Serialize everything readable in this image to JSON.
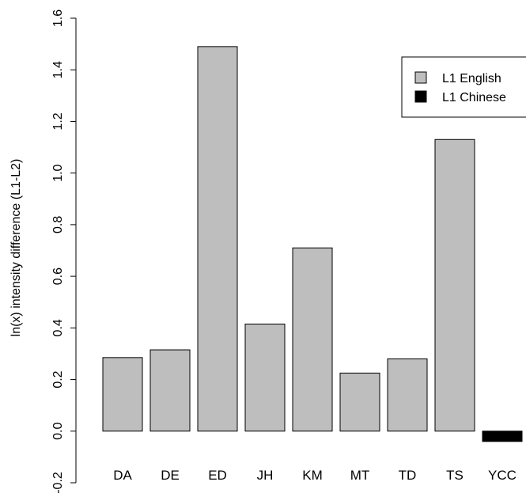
{
  "chart_data": {
    "type": "bar",
    "title": "",
    "xlabel": "",
    "ylabel": "ln(x) intensity difference (L1-L2)",
    "ylim": [
      -0.2,
      1.6
    ],
    "yticks": [
      "-0.2",
      "0.0",
      "0.2",
      "0.4",
      "0.6",
      "0.8",
      "1.0",
      "1.2",
      "1.4",
      "1.6"
    ],
    "ytick_values": [
      -0.2,
      0.0,
      0.2,
      0.4,
      0.6,
      0.8,
      1.0,
      1.2,
      1.4,
      1.6
    ],
    "categories": [
      "DA",
      "DE",
      "ED",
      "JH",
      "KM",
      "MT",
      "TD",
      "TS",
      "YCC"
    ],
    "values": [
      0.285,
      0.315,
      1.49,
      0.415,
      0.71,
      0.225,
      0.28,
      1.13,
      -0.04
    ],
    "groups": [
      "L1 English",
      "L1 English",
      "L1 English",
      "L1 English",
      "L1 English",
      "L1 English",
      "L1 English",
      "L1 English",
      "L1 Chinese"
    ],
    "legend": {
      "position": "top-right",
      "entries": [
        {
          "label": "L1 English",
          "color": "#bebebe"
        },
        {
          "label": "L1 Chinese",
          "color": "#000000"
        }
      ]
    },
    "grid": false
  }
}
